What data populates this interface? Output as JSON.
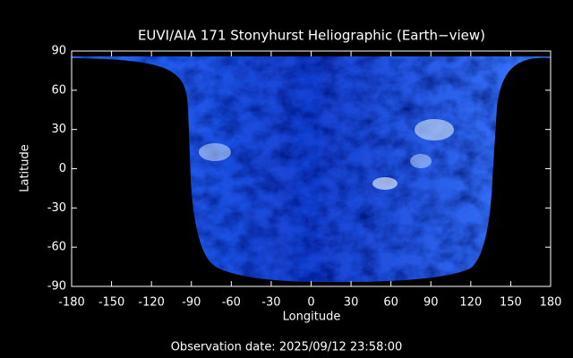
{
  "chart_data": {
    "type": "image-map",
    "title": "EUVI/AIA 171 Stonyhurst Heliographic (Earth−view)",
    "xlabel": "Longitude",
    "ylabel": "Latitude",
    "note": "Observation date: 2025/09/12 23:58:00",
    "xlim": [
      -180,
      180
    ],
    "ylim": [
      -90,
      90
    ],
    "xticks": [
      -180,
      -150,
      -120,
      -90,
      -60,
      -30,
      0,
      30,
      60,
      90,
      120,
      150,
      180
    ],
    "yticks": [
      -90,
      -60,
      -30,
      0,
      30,
      60,
      90
    ]
  }
}
